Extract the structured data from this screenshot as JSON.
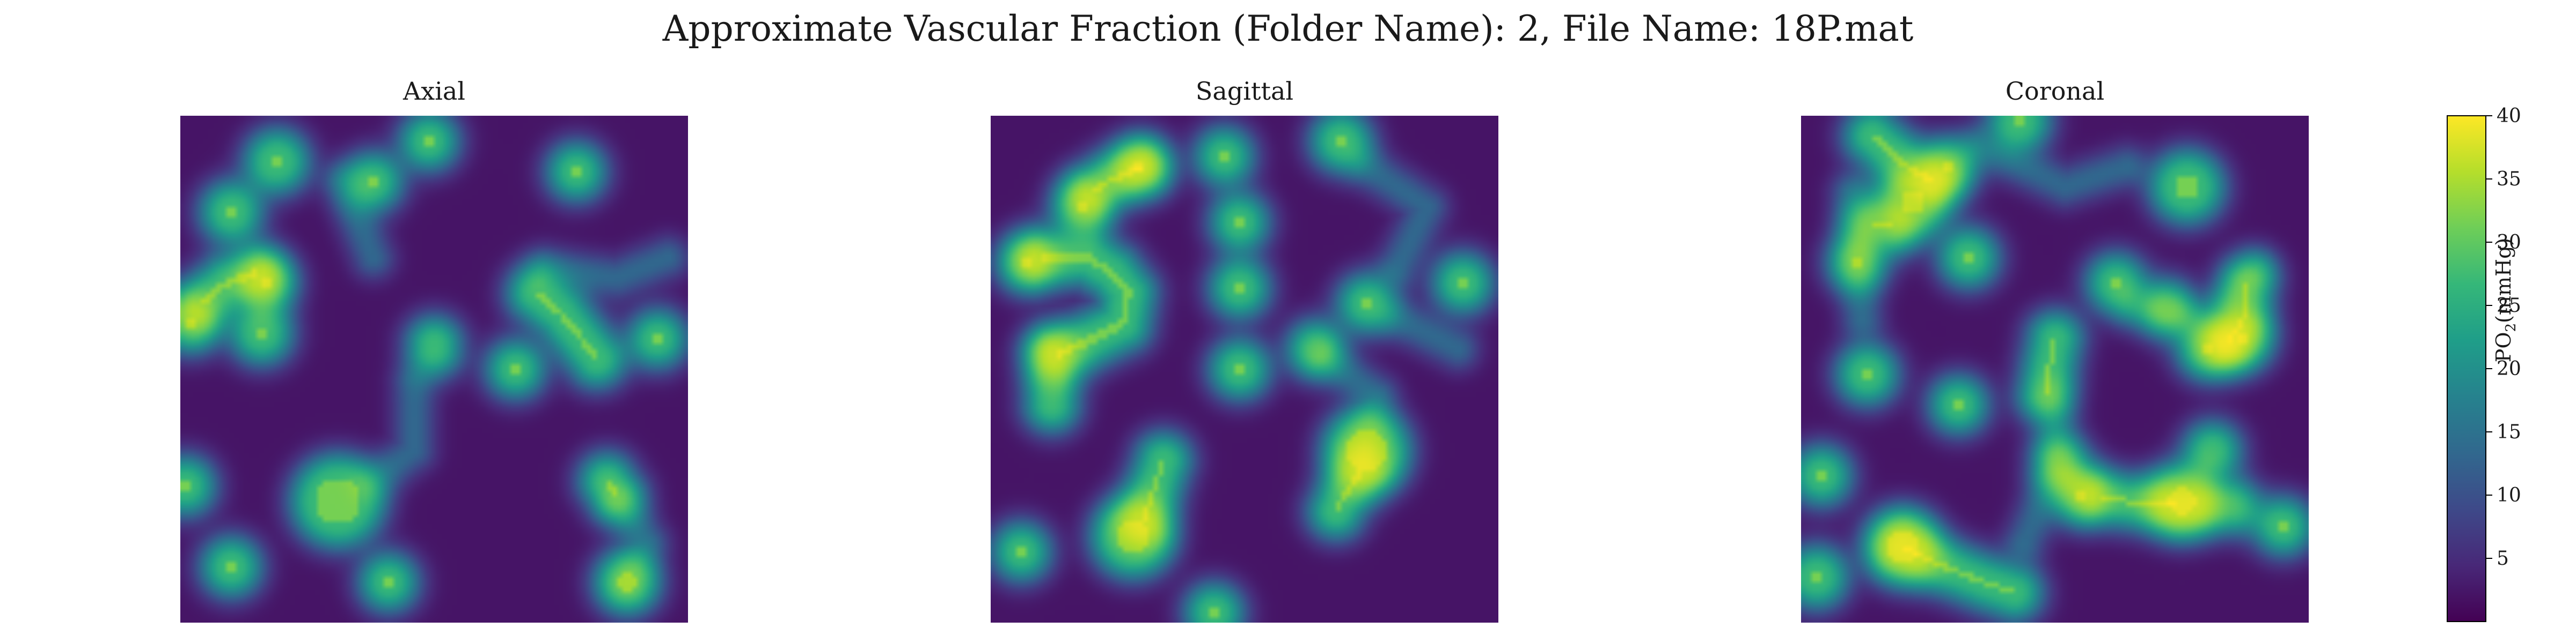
{
  "chart_data": {
    "type": "heatmap",
    "title": "Approximate Vascular Fraction (Folder Name): 2, File Name: 18P.mat",
    "panels": [
      {
        "title": "Axial",
        "grid_size": 100,
        "vessels": [
          {
            "kind": "blob",
            "x": 0.31,
            "y": 0.76,
            "r": 0.045
          },
          {
            "kind": "dot",
            "x": 0.19,
            "y": 0.09,
            "r": 0.015
          },
          {
            "kind": "dot",
            "x": 0.1,
            "y": 0.19,
            "r": 0.012
          },
          {
            "kind": "dot",
            "x": 0.49,
            "y": 0.05,
            "r": 0.008
          },
          {
            "kind": "dot",
            "x": 0.38,
            "y": 0.13,
            "r": 0.008
          },
          {
            "kind": "dot",
            "x": 0.78,
            "y": 0.11,
            "r": 0.008
          },
          {
            "kind": "dot",
            "x": 0.16,
            "y": 0.43,
            "r": 0.012
          },
          {
            "kind": "dot",
            "x": 0.02,
            "y": 0.41,
            "r": 0.009
          },
          {
            "kind": "dot",
            "x": 0.66,
            "y": 0.5,
            "r": 0.008
          },
          {
            "kind": "dot",
            "x": 0.94,
            "y": 0.44,
            "r": 0.008
          },
          {
            "kind": "dot",
            "x": 0.01,
            "y": 0.73,
            "r": 0.009
          },
          {
            "kind": "dot",
            "x": 0.1,
            "y": 0.89,
            "r": 0.01
          },
          {
            "kind": "dot",
            "x": 0.41,
            "y": 0.92,
            "r": 0.008
          },
          {
            "kind": "dot",
            "x": 0.88,
            "y": 0.92,
            "r": 0.016
          },
          {
            "kind": "dot",
            "x": 0.17,
            "y": 0.33,
            "r": 0.009
          },
          {
            "kind": "line",
            "pts": [
              [
                0.04,
                0.37
              ],
              [
                0.09,
                0.33
              ],
              [
                0.15,
                0.31
              ]
            ],
            "w": 0.013
          },
          {
            "kind": "line",
            "pts": [
              [
                0.7,
                0.35
              ],
              [
                0.75,
                0.39
              ],
              [
                0.79,
                0.44
              ],
              [
                0.82,
                0.48
              ]
            ],
            "w": 0.014
          },
          {
            "kind": "line",
            "pts": [
              [
                0.5,
                0.45
              ],
              [
                0.5,
                0.46
              ]
            ],
            "w": 0.009
          },
          {
            "kind": "line",
            "pts": [
              [
                0.84,
                0.72
              ],
              [
                0.86,
                0.75
              ]
            ],
            "w": 0.01
          },
          {
            "kind": "halo",
            "pts": [
              [
                0.46,
                0.53
              ],
              [
                0.46,
                0.66
              ],
              [
                0.38,
                0.72
              ]
            ],
            "w": 0.02
          },
          {
            "kind": "halo",
            "pts": [
              [
                0.32,
                0.13
              ],
              [
                0.38,
                0.28
              ]
            ],
            "w": 0.02
          },
          {
            "kind": "halo",
            "pts": [
              [
                0.72,
                0.3
              ],
              [
                0.86,
                0.32
              ],
              [
                0.96,
                0.28
              ]
            ],
            "w": 0.02
          },
          {
            "kind": "halo",
            "pts": [
              [
                0.86,
                0.76
              ],
              [
                0.92,
                0.84
              ],
              [
                0.88,
                0.92
              ]
            ],
            "w": 0.02
          }
        ]
      },
      {
        "title": "Sagittal",
        "grid_size": 100,
        "vessels": [
          {
            "kind": "blob",
            "x": 0.28,
            "y": 0.83,
            "r": 0.035
          },
          {
            "kind": "blob",
            "x": 0.74,
            "y": 0.66,
            "r": 0.04
          },
          {
            "kind": "dot",
            "x": 0.29,
            "y": 0.1,
            "r": 0.008
          },
          {
            "kind": "dot",
            "x": 0.46,
            "y": 0.08,
            "r": 0.008
          },
          {
            "kind": "dot",
            "x": 0.69,
            "y": 0.05,
            "r": 0.011
          },
          {
            "kind": "dot",
            "x": 0.49,
            "y": 0.21,
            "r": 0.008
          },
          {
            "kind": "dot",
            "x": 0.18,
            "y": 0.18,
            "r": 0.01
          },
          {
            "kind": "dot",
            "x": 0.49,
            "y": 0.34,
            "r": 0.01
          },
          {
            "kind": "dot",
            "x": 0.93,
            "y": 0.33,
            "r": 0.01
          },
          {
            "kind": "dot",
            "x": 0.49,
            "y": 0.5,
            "r": 0.01
          },
          {
            "kind": "dot",
            "x": 0.64,
            "y": 0.46,
            "r": 0.007
          },
          {
            "kind": "dot",
            "x": 0.74,
            "y": 0.37,
            "r": 0.008
          },
          {
            "kind": "dot",
            "x": 0.07,
            "y": 0.29,
            "r": 0.008
          },
          {
            "kind": "dot",
            "x": 0.06,
            "y": 0.86,
            "r": 0.008
          },
          {
            "kind": "dot",
            "x": 0.44,
            "y": 0.98,
            "r": 0.008
          },
          {
            "kind": "line",
            "pts": [
              [
                0.1,
                0.28
              ],
              [
                0.19,
                0.28
              ],
              [
                0.24,
                0.31
              ],
              [
                0.27,
                0.35
              ],
              [
                0.26,
                0.41
              ],
              [
                0.18,
                0.45
              ],
              [
                0.13,
                0.47
              ]
            ],
            "w": 0.014
          },
          {
            "kind": "line",
            "pts": [
              [
                0.12,
                0.47
              ],
              [
                0.12,
                0.57
              ]
            ],
            "w": 0.009
          },
          {
            "kind": "line",
            "pts": [
              [
                0.2,
                0.15
              ],
              [
                0.23,
                0.13
              ],
              [
                0.3,
                0.1
              ]
            ],
            "w": 0.011
          },
          {
            "kind": "line",
            "pts": [
              [
                0.34,
                0.68
              ],
              [
                0.32,
                0.74
              ],
              [
                0.3,
                0.8
              ]
            ],
            "w": 0.012
          },
          {
            "kind": "line",
            "pts": [
              [
                0.73,
                0.7
              ],
              [
                0.69,
                0.76
              ],
              [
                0.68,
                0.78
              ]
            ],
            "w": 0.01
          },
          {
            "kind": "halo",
            "pts": [
              [
                0.66,
                0.48
              ],
              [
                0.76,
                0.55
              ],
              [
                0.74,
                0.64
              ]
            ],
            "w": 0.02
          },
          {
            "kind": "halo",
            "pts": [
              [
                0.74,
                0.1
              ],
              [
                0.86,
                0.18
              ],
              [
                0.8,
                0.3
              ]
            ],
            "w": 0.02
          },
          {
            "kind": "halo",
            "pts": [
              [
                0.8,
                0.4
              ],
              [
                0.92,
                0.46
              ]
            ],
            "w": 0.02
          }
        ]
      },
      {
        "title": "Coronal",
        "grid_size": 100,
        "vessels": [
          {
            "kind": "blob",
            "x": 0.2,
            "y": 0.85,
            "r": 0.03
          },
          {
            "kind": "blob",
            "x": 0.75,
            "y": 0.76,
            "r": 0.028
          },
          {
            "kind": "blob",
            "x": 0.76,
            "y": 0.14,
            "r": 0.025
          },
          {
            "kind": "blob",
            "x": 0.22,
            "y": 0.17,
            "r": 0.025
          },
          {
            "kind": "dot",
            "x": 0.29,
            "y": 0.1,
            "r": 0.008
          },
          {
            "kind": "dot",
            "x": 0.43,
            "y": 0.01,
            "r": 0.012
          },
          {
            "kind": "dot",
            "x": 0.11,
            "y": 0.29,
            "r": 0.008
          },
          {
            "kind": "dot",
            "x": 0.33,
            "y": 0.28,
            "r": 0.01
          },
          {
            "kind": "dot",
            "x": 0.62,
            "y": 0.33,
            "r": 0.009
          },
          {
            "kind": "dot",
            "x": 0.72,
            "y": 0.38,
            "r": 0.007
          },
          {
            "kind": "dot",
            "x": 0.87,
            "y": 0.44,
            "r": 0.011
          },
          {
            "kind": "dot",
            "x": 0.8,
            "y": 0.46,
            "r": 0.011
          },
          {
            "kind": "dot",
            "x": 0.13,
            "y": 0.51,
            "r": 0.012
          },
          {
            "kind": "dot",
            "x": 0.31,
            "y": 0.57,
            "r": 0.008
          },
          {
            "kind": "dot",
            "x": 0.04,
            "y": 0.71,
            "r": 0.01
          },
          {
            "kind": "dot",
            "x": 0.55,
            "y": 0.75,
            "r": 0.008
          },
          {
            "kind": "dot",
            "x": 0.81,
            "y": 0.66,
            "r": 0.007
          },
          {
            "kind": "dot",
            "x": 0.03,
            "y": 0.91,
            "r": 0.013
          },
          {
            "kind": "dot",
            "x": 0.95,
            "y": 0.81,
            "r": 0.008
          },
          {
            "kind": "line",
            "pts": [
              [
                0.5,
                0.44
              ],
              [
                0.49,
                0.49
              ],
              [
                0.48,
                0.55
              ]
            ],
            "w": 0.009
          },
          {
            "kind": "line",
            "pts": [
              [
                0.51,
                0.68
              ],
              [
                0.51,
                0.69
              ]
            ],
            "w": 0.008
          },
          {
            "kind": "line",
            "pts": [
              [
                0.2,
                0.85
              ],
              [
                0.26,
                0.88
              ],
              [
                0.31,
                0.9
              ],
              [
                0.36,
                0.92
              ],
              [
                0.42,
                0.94
              ]
            ],
            "w": 0.012
          },
          {
            "kind": "line",
            "pts": [
              [
                0.59,
                0.75
              ],
              [
                0.64,
                0.76
              ],
              [
                0.74,
                0.77
              ],
              [
                0.85,
                0.77
              ]
            ],
            "w": 0.009
          },
          {
            "kind": "line",
            "pts": [
              [
                0.88,
                0.33
              ],
              [
                0.87,
                0.4
              ],
              [
                0.84,
                0.45
              ]
            ],
            "w": 0.009
          },
          {
            "kind": "line",
            "pts": [
              [
                0.14,
                0.04
              ],
              [
                0.21,
                0.1
              ],
              [
                0.26,
                0.13
              ]
            ],
            "w": 0.012
          },
          {
            "kind": "line",
            "pts": [
              [
                0.14,
                0.21
              ],
              [
                0.18,
                0.22
              ]
            ],
            "w": 0.008
          },
          {
            "kind": "halo",
            "pts": [
              [
                0.5,
                0.55
              ],
              [
                0.5,
                0.7
              ],
              [
                0.44,
                0.84
              ]
            ],
            "w": 0.022
          },
          {
            "kind": "halo",
            "pts": [
              [
                0.35,
                0.06
              ],
              [
                0.52,
                0.14
              ],
              [
                0.64,
                0.1
              ]
            ],
            "w": 0.018
          },
          {
            "kind": "halo",
            "pts": [
              [
                0.65,
                0.38
              ],
              [
                0.8,
                0.4
              ],
              [
                0.9,
                0.3
              ]
            ],
            "w": 0.018
          },
          {
            "kind": "halo",
            "pts": [
              [
                0.1,
                0.15
              ],
              [
                0.12,
                0.4
              ]
            ],
            "w": 0.018
          }
        ]
      }
    ],
    "colorbar": {
      "label_main": "PO",
      "label_sub": "2",
      "label_unit": "(mmHg)",
      "vmin": 0,
      "vmax": 40,
      "ticks": [
        5,
        10,
        15,
        20,
        25,
        30,
        35,
        40
      ],
      "tick_labels": [
        "5",
        "10",
        "15",
        "20",
        "25",
        "30",
        "35",
        "40"
      ]
    },
    "colormap": "viridis",
    "colormap_stops": [
      "#440154",
      "#482878",
      "#3e4989",
      "#31688e",
      "#26828e",
      "#1f9e89",
      "#35b779",
      "#6ece58",
      "#b5de2b",
      "#fde725"
    ]
  }
}
